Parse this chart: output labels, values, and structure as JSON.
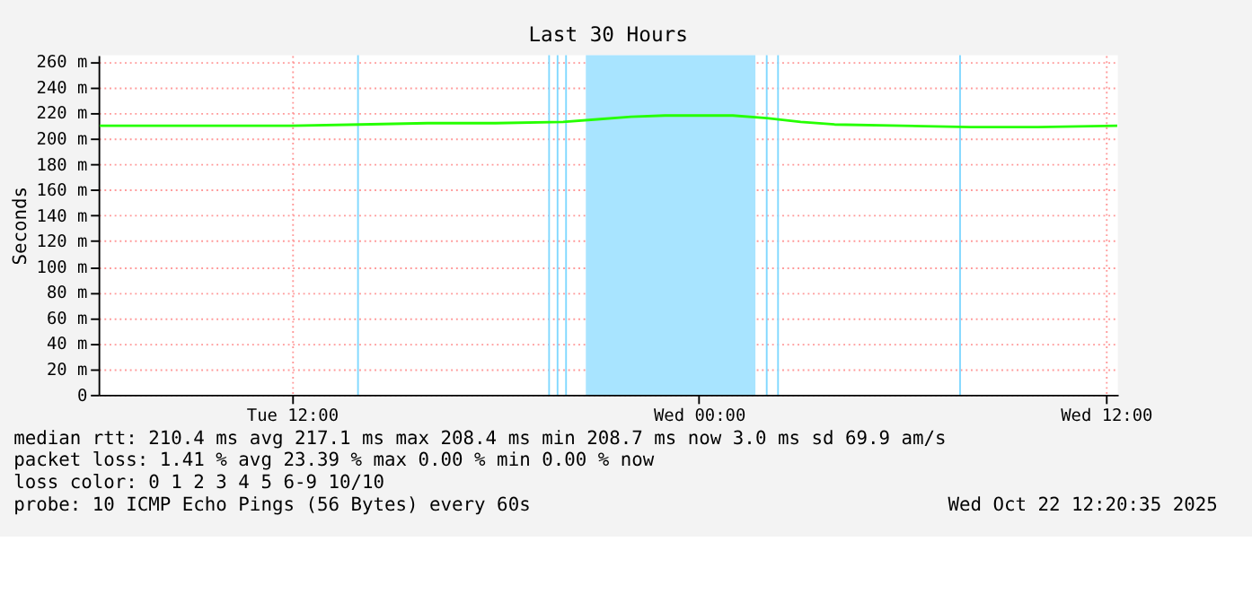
{
  "chart_data": {
    "type": "line",
    "title": "Last 30 Hours",
    "ylabel": "Seconds",
    "x": [
      "2025-10-21T06:20",
      "2025-10-21T08:00",
      "2025-10-21T10:00",
      "2025-10-21T12:00",
      "2025-10-21T14:00",
      "2025-10-21T16:00",
      "2025-10-21T18:00",
      "2025-10-21T20:00",
      "2025-10-21T21:00",
      "2025-10-21T22:00",
      "2025-10-21T23:00",
      "2025-10-22T00:00",
      "2025-10-22T01:00",
      "2025-10-22T02:00",
      "2025-10-22T03:00",
      "2025-10-22T04:00",
      "2025-10-22T06:00",
      "2025-10-22T08:00",
      "2025-10-22T10:00",
      "2025-10-22T12:20"
    ],
    "series": [
      {
        "color": "#26ff00",
        "values": [
          210,
          210,
          210,
          210,
          211,
          212,
          212,
          213,
          215,
          217,
          218,
          218,
          218,
          216,
          213,
          211,
          210,
          209,
          209,
          210
        ]
      }
    ],
    "xlim": [
      "2025-10-21T06:18",
      "2025-10-22T12:21"
    ],
    "xticks": [
      {
        "value": "2025-10-21T12:00",
        "label": "Tue 12:00"
      },
      {
        "value": "2025-10-22T00:00",
        "label": "Wed 00:00"
      },
      {
        "value": "2025-10-22T12:00",
        "label": "Wed 12:00"
      }
    ],
    "ylim": [
      0,
      265
    ],
    "yticks": [
      {
        "value": 0,
        "label": "0"
      },
      {
        "value": 20,
        "label": "20 m"
      },
      {
        "value": 40,
        "label": "40 m"
      },
      {
        "value": 60,
        "label": "60 m"
      },
      {
        "value": 80,
        "label": "80 m"
      },
      {
        "value": 100,
        "label": "100 m"
      },
      {
        "value": 120,
        "label": "120 m"
      },
      {
        "value": 140,
        "label": "140 m"
      },
      {
        "value": 160,
        "label": "160 m"
      },
      {
        "value": 180,
        "label": "180 m"
      },
      {
        "value": 200,
        "label": "200 m"
      },
      {
        "value": 220,
        "label": "220 m"
      },
      {
        "value": 240,
        "label": "240 m"
      },
      {
        "value": 260,
        "label": "260 m"
      }
    ],
    "grid": true,
    "marker": "none",
    "line_style": "solid",
    "ref_lines": [
      {
        "axis": "x",
        "value": "2025-10-21T13:57",
        "color": "#80d8ff"
      },
      {
        "axis": "x",
        "value": "2025-10-21T19:35",
        "color": "#80d8ff"
      },
      {
        "axis": "x",
        "value": "2025-10-21T19:50",
        "color": "#80d8ff"
      },
      {
        "axis": "x",
        "value": "2025-10-21T20:05",
        "color": "#80d8ff"
      },
      {
        "axis": "x",
        "value": "2025-10-22T02:00",
        "color": "#80d8ff"
      },
      {
        "axis": "x",
        "value": "2025-10-22T02:20",
        "color": "#80d8ff"
      },
      {
        "axis": "x",
        "value": "2025-10-22T07:42",
        "color": "#80d8ff"
      }
    ],
    "bands": [
      {
        "axis": "x",
        "from": "2025-10-21T20:40",
        "to": "2025-10-22T01:40",
        "color": "#a8e4ff"
      }
    ],
    "annotations": [
      "median rtt:  210.4 ms avg  217.1 ms max  208.4 ms min  208.7 ms now  3.0 ms sd  69.9   am/s",
      "packet loss: 1.41 % avg  23.39 % max  0.00 % min  0.00 % now",
      "loss color:  0   1   2   3   4   5   6-9   10/10",
      "probe:       10 ICMP Echo Pings (56 Bytes) every 60s",
      "Wed Oct 22 12:20:35 2025"
    ]
  }
}
